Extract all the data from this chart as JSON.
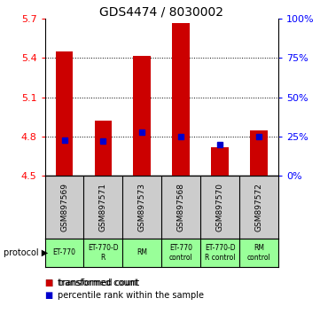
{
  "title": "GDS4474 / 8030002",
  "samples": [
    "GSM897569",
    "GSM897571",
    "GSM897573",
    "GSM897568",
    "GSM897570",
    "GSM897572"
  ],
  "bar_values": [
    5.45,
    4.92,
    5.42,
    5.67,
    4.72,
    4.85
  ],
  "bar_bottom": 4.5,
  "percentile_rank": [
    23,
    22,
    28,
    25,
    20,
    25
  ],
  "ylim": [
    4.5,
    5.7
  ],
  "yticks": [
    4.5,
    4.8,
    5.1,
    5.4,
    5.7
  ],
  "right_yticks": [
    0,
    25,
    50,
    75,
    100
  ],
  "right_ylim": [
    0,
    100
  ],
  "bar_color": "#CC0000",
  "percentile_color": "#0000CC",
  "protocol_labels": [
    "ET-770",
    "ET-770-D\nR",
    "RM",
    "ET-770\ncontrol",
    "ET-770-D\nR control",
    "RM\ncontrol"
  ],
  "protocol_bg": "#99FF99",
  "sample_bg": "#CCCCCC",
  "bar_width": 0.45,
  "legend_items": [
    {
      "color": "#CC0000",
      "label": "transformed count"
    },
    {
      "color": "#0000CC",
      "label": "percentile rank within the sample"
    }
  ]
}
